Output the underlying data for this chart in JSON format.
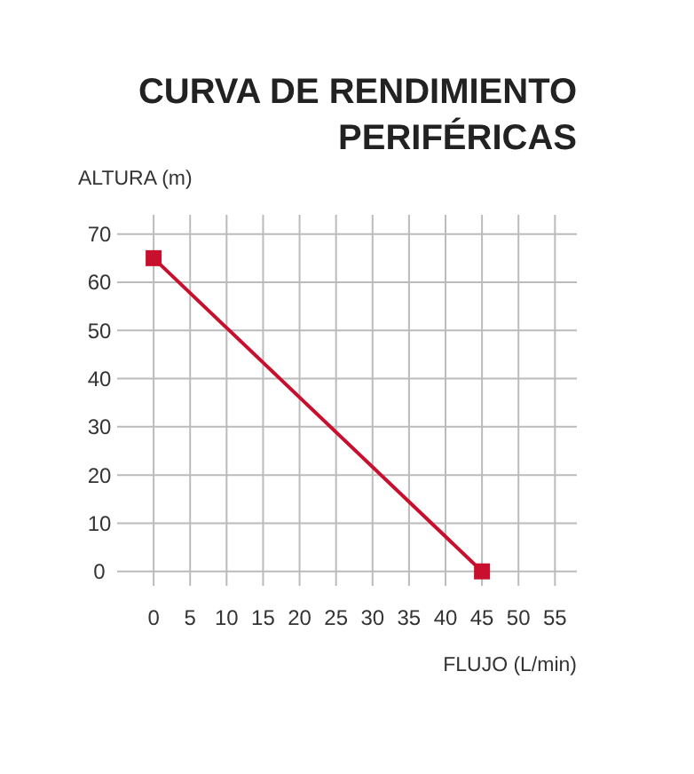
{
  "chart_data": {
    "type": "line",
    "title": "CURVA DE RENDIMIENTO\nPERIFÉRICAS",
    "xlabel": "FLUJO (L/min)",
    "ylabel": "ALTURA (m)",
    "x": [
      0,
      45
    ],
    "series": [
      {
        "color": "#c8102e",
        "values": [
          65,
          0
        ]
      }
    ],
    "xlim": [
      -5,
      58
    ],
    "xticks": [
      0,
      5,
      10,
      15,
      20,
      25,
      30,
      35,
      40,
      45,
      50,
      55
    ],
    "ylim": [
      -3,
      74
    ],
    "yticks": [
      0,
      10,
      20,
      30,
      40,
      50,
      60,
      70
    ],
    "grid": true,
    "marker": "square",
    "line_style": "solid"
  }
}
